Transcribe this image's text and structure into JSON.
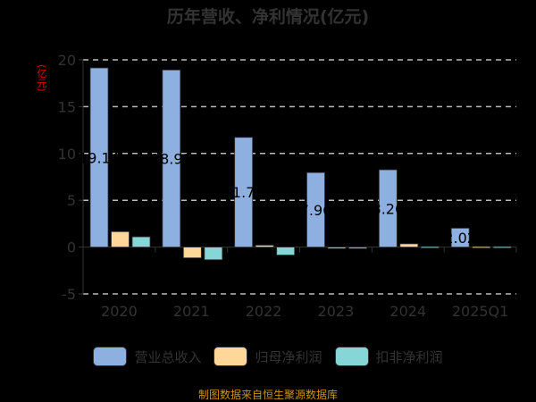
{
  "chart_data": {
    "type": "bar",
    "title": "历年营收、净利情况(亿元)",
    "ylabel": "(亿元)",
    "categories": [
      "2020",
      "2021",
      "2022",
      "2023",
      "2024",
      "2025Q1"
    ],
    "ylim": [
      -5,
      20
    ],
    "yticks": [
      "-5",
      "0",
      "5",
      "10",
      "15",
      "20"
    ],
    "grid": true,
    "legend_position": "bottom",
    "series": [
      {
        "name": "营业总收入",
        "color": "#8eb0e0",
        "values": [
          19.14,
          18.92,
          11.72,
          7.96,
          8.26,
          2.02
        ],
        "labels": [
          "19.14",
          "18.92",
          "11.72",
          "7.96",
          "8.26",
          "2.02"
        ]
      },
      {
        "name": "归母净利润",
        "color": "#ffd899",
        "values": [
          1.65,
          -1.15,
          0.2,
          -0.1,
          0.35,
          0.05
        ]
      },
      {
        "name": "扣非净利润",
        "color": "#86d6d8",
        "values": [
          1.1,
          -1.35,
          -0.85,
          -0.15,
          0.05,
          0.05
        ]
      }
    ]
  },
  "footer": "制图数据来自恒生聚源数据库"
}
